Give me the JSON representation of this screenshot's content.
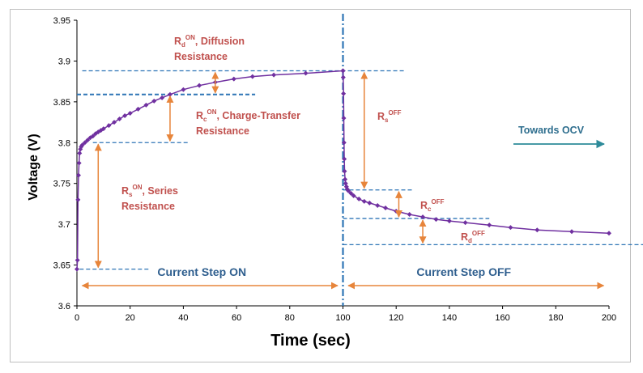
{
  "chart_data": {
    "type": "line",
    "xlabel": "Time (sec)",
    "ylabel": "Voltage (V)",
    "xlim": [
      0,
      200
    ],
    "ylim": [
      3.6,
      3.95
    ],
    "xticks": [
      0,
      20,
      40,
      60,
      80,
      100,
      120,
      140,
      160,
      180,
      200
    ],
    "yticks": [
      3.6,
      3.65,
      3.7,
      3.75,
      3.8,
      3.85,
      3.9,
      3.95
    ],
    "series_color": "#7030a0",
    "series": [
      {
        "x": [
          0,
          0.2,
          0.4,
          0.6,
          0.8,
          1.0,
          1.3,
          1.6,
          2,
          3,
          4,
          5,
          6,
          7,
          8,
          9,
          10,
          12,
          14,
          16,
          18,
          20,
          23,
          26,
          29,
          32,
          35,
          40,
          46,
          52,
          59,
          66,
          74,
          86,
          100,
          100,
          100.1,
          100.2,
          100.3,
          100.4,
          100.5,
          100.6,
          100.8,
          101,
          101.3,
          101.6,
          102,
          103,
          104,
          106,
          108,
          110,
          113,
          116,
          120,
          125,
          130,
          135,
          140,
          146,
          155,
          163,
          173,
          186,
          200
        ],
        "y": [
          3.645,
          3.656,
          3.73,
          3.76,
          3.775,
          3.787,
          3.792,
          3.795,
          3.797,
          3.8,
          3.803,
          3.806,
          3.808,
          3.811,
          3.813,
          3.815,
          3.817,
          3.821,
          3.825,
          3.829,
          3.833,
          3.836,
          3.841,
          3.846,
          3.851,
          3.855,
          3.859,
          3.865,
          3.87,
          3.874,
          3.878,
          3.881,
          3.883,
          3.885,
          3.888,
          3.888,
          3.88,
          3.86,
          3.83,
          3.8,
          3.78,
          3.765,
          3.755,
          3.75,
          3.746,
          3.743,
          3.741,
          3.738,
          3.735,
          3.731,
          3.728,
          3.726,
          3.723,
          3.72,
          3.716,
          3.712,
          3.709,
          3.706,
          3.704,
          3.702,
          3.699,
          3.696,
          3.693,
          3.691,
          3.689
        ]
      }
    ],
    "grid": false,
    "legend": "none",
    "annotations": {
      "rd_on": {
        "base": "R",
        "sub": "d",
        "sup": "ON",
        "text1": ", Diffusion",
        "text2": "Resistance"
      },
      "rc_on": {
        "base": "R",
        "sub": "c",
        "sup": "ON",
        "text1": ", Charge-Transfer",
        "text2": "Resistance"
      },
      "rs_on": {
        "base": "R",
        "sub": "s",
        "sup": "ON",
        "text1": ", Series",
        "text2": "Resistance"
      },
      "rs_off": {
        "base": "R",
        "sub": "s",
        "sup": "OFF"
      },
      "rc_off": {
        "base": "R",
        "sub": "c",
        "sup": "OFF"
      },
      "rd_off": {
        "base": "R",
        "sub": "d",
        "sup": "OFF"
      },
      "towards_ocv": "Towards OCV",
      "step_on": "Current Step ON",
      "step_off": "Current Step OFF"
    },
    "colors": {
      "annotation_red": "#c0504d",
      "arrow_orange": "#e7853b",
      "dash_blue": "#2e75b6",
      "label_blue": "#2e5e8e",
      "ocv_teal": "#2e8b9a"
    }
  }
}
